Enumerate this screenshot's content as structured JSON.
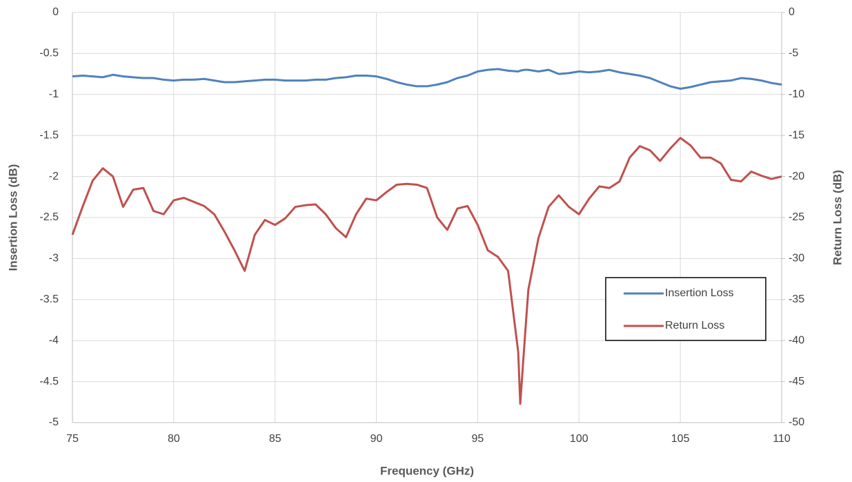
{
  "chart_data": {
    "type": "line",
    "xlabel": "Frequency (GHz)",
    "ylabel": "Insertion Loss (dB)",
    "y2label": "Return Loss (dB)",
    "x": [
      75,
      75.5,
      76,
      76.5,
      77,
      77.5,
      78,
      78.5,
      79,
      79.5,
      80,
      80.5,
      81,
      81.5,
      82,
      82.5,
      83,
      83.5,
      84,
      84.5,
      85,
      85.5,
      86,
      86.5,
      87,
      87.5,
      88,
      88.5,
      89,
      89.5,
      90,
      90.5,
      91,
      91.5,
      92,
      92.5,
      93,
      93.5,
      94,
      94.5,
      95,
      95.5,
      96,
      96.5,
      97,
      97.1,
      97.3,
      97.5,
      98,
      98.5,
      99,
      99.5,
      100,
      100.5,
      101,
      101.5,
      102,
      102.5,
      103,
      103.5,
      104,
      104.5,
      105,
      105.5,
      106,
      106.5,
      107,
      107.5,
      108,
      108.5,
      109,
      109.5,
      110
    ],
    "series": [
      {
        "name": "Insertion Loss",
        "color": "#4f81bd",
        "values": [
          -0.78,
          -0.77,
          -0.78,
          -0.79,
          -0.76,
          -0.78,
          -0.79,
          -0.8,
          -0.8,
          -0.82,
          -0.83,
          -0.82,
          -0.82,
          -0.81,
          -0.83,
          -0.85,
          -0.85,
          -0.84,
          -0.83,
          -0.82,
          -0.82,
          -0.83,
          -0.83,
          -0.83,
          -0.82,
          -0.82,
          -0.8,
          -0.79,
          -0.77,
          -0.77,
          -0.78,
          -0.81,
          -0.85,
          -0.88,
          -0.9,
          -0.9,
          -0.88,
          -0.85,
          -0.8,
          -0.77,
          -0.72,
          -0.7,
          -0.69,
          -0.71,
          -0.72,
          -0.71,
          -0.7,
          -0.7,
          -0.72,
          -0.7,
          -0.75,
          -0.74,
          -0.72,
          -0.73,
          -0.72,
          -0.7,
          -0.73,
          -0.75,
          -0.77,
          -0.8,
          -0.85,
          -0.9,
          -0.93,
          -0.91,
          -0.88,
          -0.85,
          -0.84,
          -0.83,
          -0.8,
          -0.81,
          -0.83,
          -0.86,
          -0.88
        ]
      },
      {
        "name": "Return Loss",
        "color": "#c0504d",
        "axis": "y2",
        "values": [
          -27.1,
          -23.7,
          -20.5,
          -19.0,
          -20.0,
          -23.7,
          -21.6,
          -21.4,
          -24.2,
          -24.6,
          -22.9,
          -22.6,
          -23.1,
          -23.6,
          -24.6,
          -26.7,
          -29.0,
          -31.5,
          -27.1,
          -25.3,
          -25.9,
          -25.1,
          -23.7,
          -23.5,
          -23.4,
          -24.6,
          -26.3,
          -27.4,
          -24.6,
          -22.7,
          -22.9,
          -21.9,
          -21.0,
          -20.9,
          -21.0,
          -21.4,
          -25.0,
          -26.5,
          -23.9,
          -23.6,
          -25.9,
          -29.0,
          -29.8,
          -31.5,
          -41.4,
          -47.7,
          -40.6,
          -33.8,
          -27.5,
          -23.7,
          -22.3,
          -23.7,
          -24.6,
          -22.7,
          -21.2,
          -21.4,
          -20.6,
          -17.7,
          -16.3,
          -16.8,
          -18.1,
          -16.6,
          -15.3,
          -16.2,
          -17.7,
          -17.7,
          -18.4,
          -20.4,
          -20.6,
          -19.4,
          -19.9,
          -20.3,
          -20.0
        ]
      }
    ],
    "xlim": [
      75,
      110
    ],
    "xticks": [
      75,
      80,
      85,
      90,
      95,
      100,
      105,
      110
    ],
    "ylim": [
      -5,
      0
    ],
    "yticks": [
      0,
      -0.5,
      -1,
      -1.5,
      -2,
      -2.5,
      -3,
      -3.5,
      -4,
      -4.5,
      -5
    ],
    "y2lim": [
      -50,
      0
    ],
    "y2ticks": [
      0,
      -5,
      -10,
      -15,
      -20,
      -25,
      -30,
      -35,
      -40,
      -45,
      -50
    ],
    "grid": true,
    "legend": "lower right"
  }
}
